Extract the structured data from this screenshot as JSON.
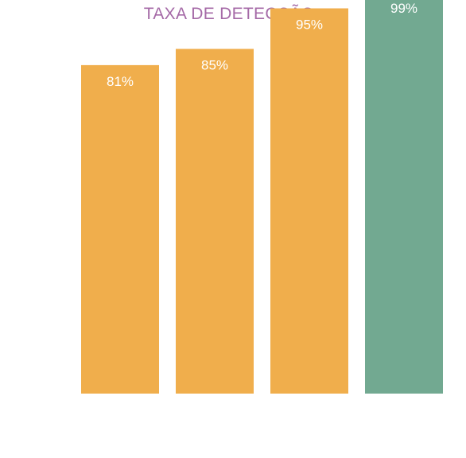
{
  "chart_data": {
    "type": "bar",
    "title": "TAXA DE DETECÇÃO",
    "categories": [
      "",
      "",
      "",
      ""
    ],
    "values": [
      81,
      85,
      95,
      99
    ],
    "data_labels": [
      "81%",
      "85%",
      "95%",
      "99%"
    ],
    "ylim": [
      0,
      100
    ],
    "grid": false,
    "colors": [
      "#f0ae4c",
      "#f0ae4c",
      "#f0ae4c",
      "#72a991"
    ]
  }
}
